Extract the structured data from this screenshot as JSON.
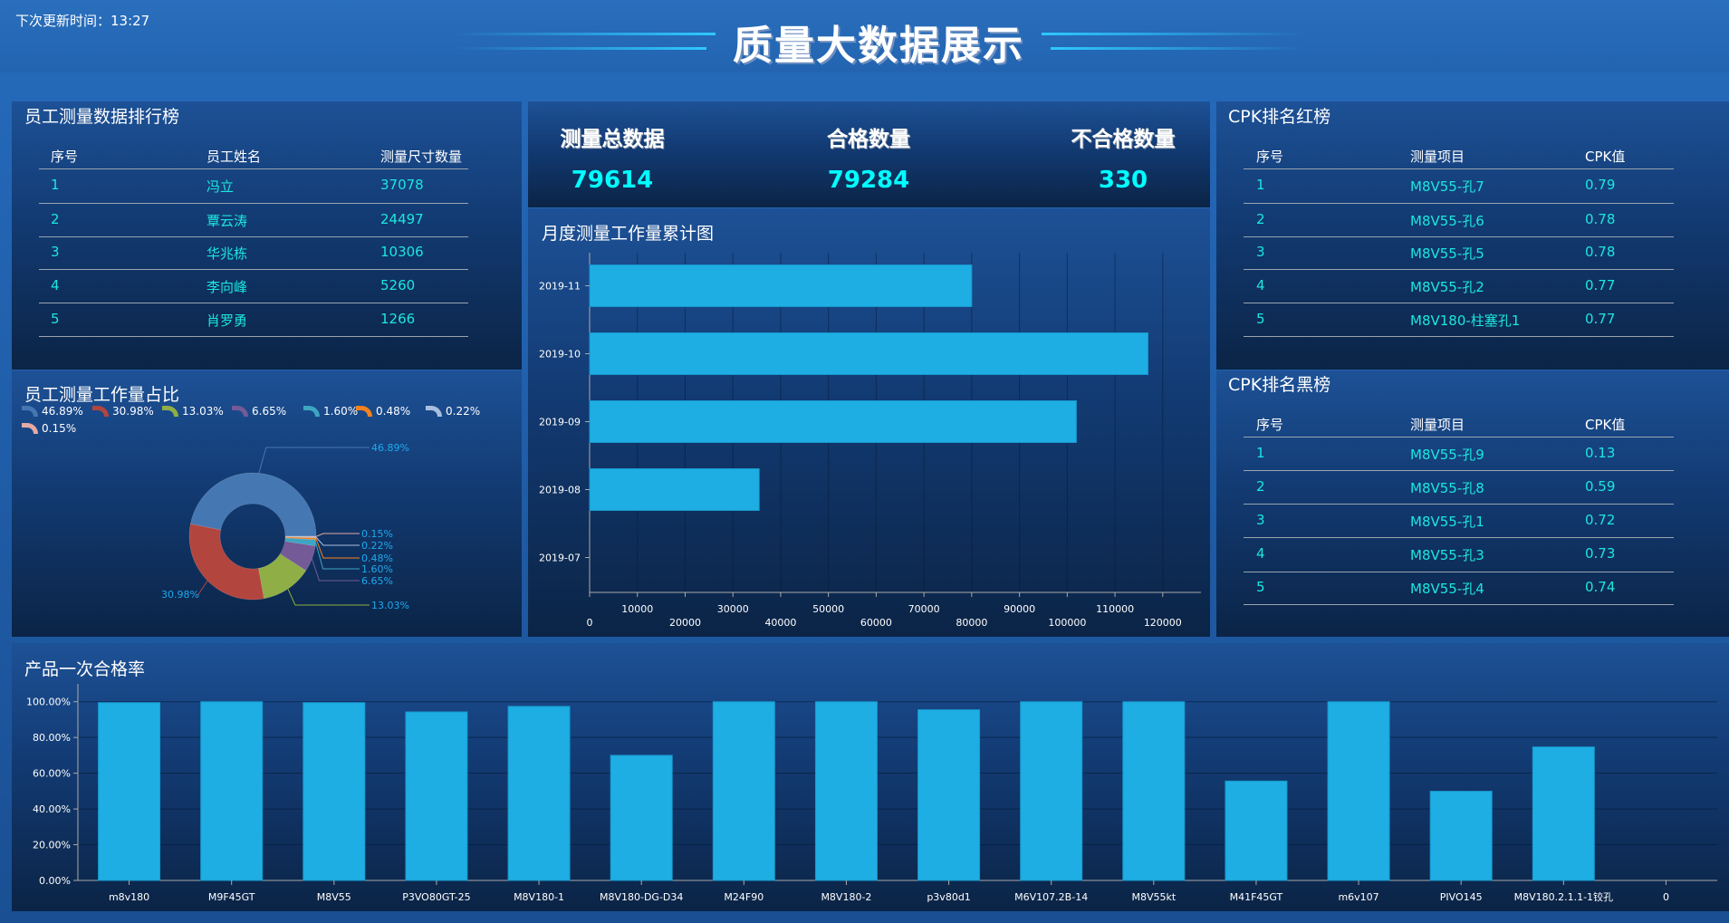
{
  "header": {
    "update_label": "下次更新时间：13:27",
    "title": "质量大数据展示"
  },
  "ranking": {
    "title": "员工测量数据排行榜",
    "columns": [
      "序号",
      "员工姓名",
      "测量尺寸数量"
    ],
    "rows": [
      [
        "1",
        "冯立",
        "37078"
      ],
      [
        "2",
        "覃云涛",
        "24497"
      ],
      [
        "3",
        "华兆栋",
        "10306"
      ],
      [
        "4",
        "李向峰",
        "5260"
      ],
      [
        "5",
        "肖罗勇",
        "1266"
      ]
    ]
  },
  "kpi": [
    {
      "label": "测量总数据",
      "value": "79614"
    },
    {
      "label": "合格数量",
      "value": "79284"
    },
    {
      "label": "不合格数量",
      "value": "330"
    }
  ],
  "cpk_red": {
    "title": "CPK排名红榜",
    "columns": [
      "序号",
      "测量项目",
      "CPK值"
    ],
    "rows": [
      [
        "1",
        "M8V55-孔7",
        "0.79"
      ],
      [
        "2",
        "M8V55-孔6",
        "0.78"
      ],
      [
        "3",
        "M8V55-孔5",
        "0.78"
      ],
      [
        "4",
        "M8V55-孔2",
        "0.77"
      ],
      [
        "5",
        "M8V180-柱塞孔1",
        "0.77"
      ]
    ]
  },
  "cpk_black": {
    "title": "CPK排名黑榜",
    "columns": [
      "序号",
      "测量项目",
      "CPK值"
    ],
    "rows": [
      [
        "1",
        "M8V55-孔9",
        "0.13"
      ],
      [
        "2",
        "M8V55-孔8",
        "0.59"
      ],
      [
        "3",
        "M8V55-孔1",
        "0.72"
      ],
      [
        "4",
        "M8V55-孔3",
        "0.73"
      ],
      [
        "5",
        "M8V55-孔4",
        "0.74"
      ]
    ]
  },
  "colors": {
    "accent_text": "#1de6df",
    "kpi_value": "#00ffff",
    "bar": "#1eaee4"
  },
  "chart_data": [
    {
      "type": "pie",
      "title": "员工测量工作量占比",
      "donut": true,
      "slices": [
        {
          "label": "46.89%",
          "value": 46.89,
          "color": "#4578b2"
        },
        {
          "label": "30.98%",
          "value": 30.98,
          "color": "#b3453f"
        },
        {
          "label": "13.03%",
          "value": 13.03,
          "color": "#8fae45"
        },
        {
          "label": "6.65%",
          "value": 6.65,
          "color": "#745a97"
        },
        {
          "label": "1.60%",
          "value": 1.6,
          "color": "#3ea5c2"
        },
        {
          "label": "0.48%",
          "value": 0.48,
          "color": "#f5821f"
        },
        {
          "label": "0.22%",
          "value": 0.22,
          "color": "#a8bfdf"
        },
        {
          "label": "0.15%",
          "value": 0.15,
          "color": "#e3aaa5"
        }
      ],
      "legend": "top-left"
    },
    {
      "type": "bar",
      "orientation": "horizontal",
      "title": "月度测量工作量累计图",
      "categories": [
        "2019-11",
        "2019-10",
        "2019-09",
        "2019-08",
        "2019-07"
      ],
      "values": [
        80000,
        116900,
        101900,
        35500,
        0
      ],
      "xlim": [
        0,
        128000
      ],
      "xticks": [
        0,
        10000,
        20000,
        30000,
        40000,
        50000,
        60000,
        70000,
        80000,
        90000,
        100000,
        110000,
        120000
      ],
      "grid": true
    },
    {
      "type": "bar",
      "title": "产品一次合格率",
      "categories": [
        "m8v180",
        "M9F45GT",
        "M8V55",
        "P3VO80GT-25",
        "M8V180-1",
        "M8V180-DG-D34",
        "M24F90",
        "M8V180-2",
        "p3v80d1",
        "M6V107.2B-14",
        "M8V55kt",
        "M41F45GT",
        "m6v107",
        "PIVO145",
        "M8V180.2.1.1-1铰孔",
        "0"
      ],
      "values": [
        99.5,
        100,
        99.5,
        94.3,
        97.4,
        70.0,
        100,
        100,
        95.5,
        100,
        100,
        55.6,
        100,
        49.9,
        74.7,
        0
      ],
      "ylim": [
        0,
        110
      ],
      "yticks": [
        "0.00%",
        "20.00%",
        "40.00%",
        "60.00%",
        "80.00%",
        "100.00%"
      ],
      "grid": true
    }
  ]
}
